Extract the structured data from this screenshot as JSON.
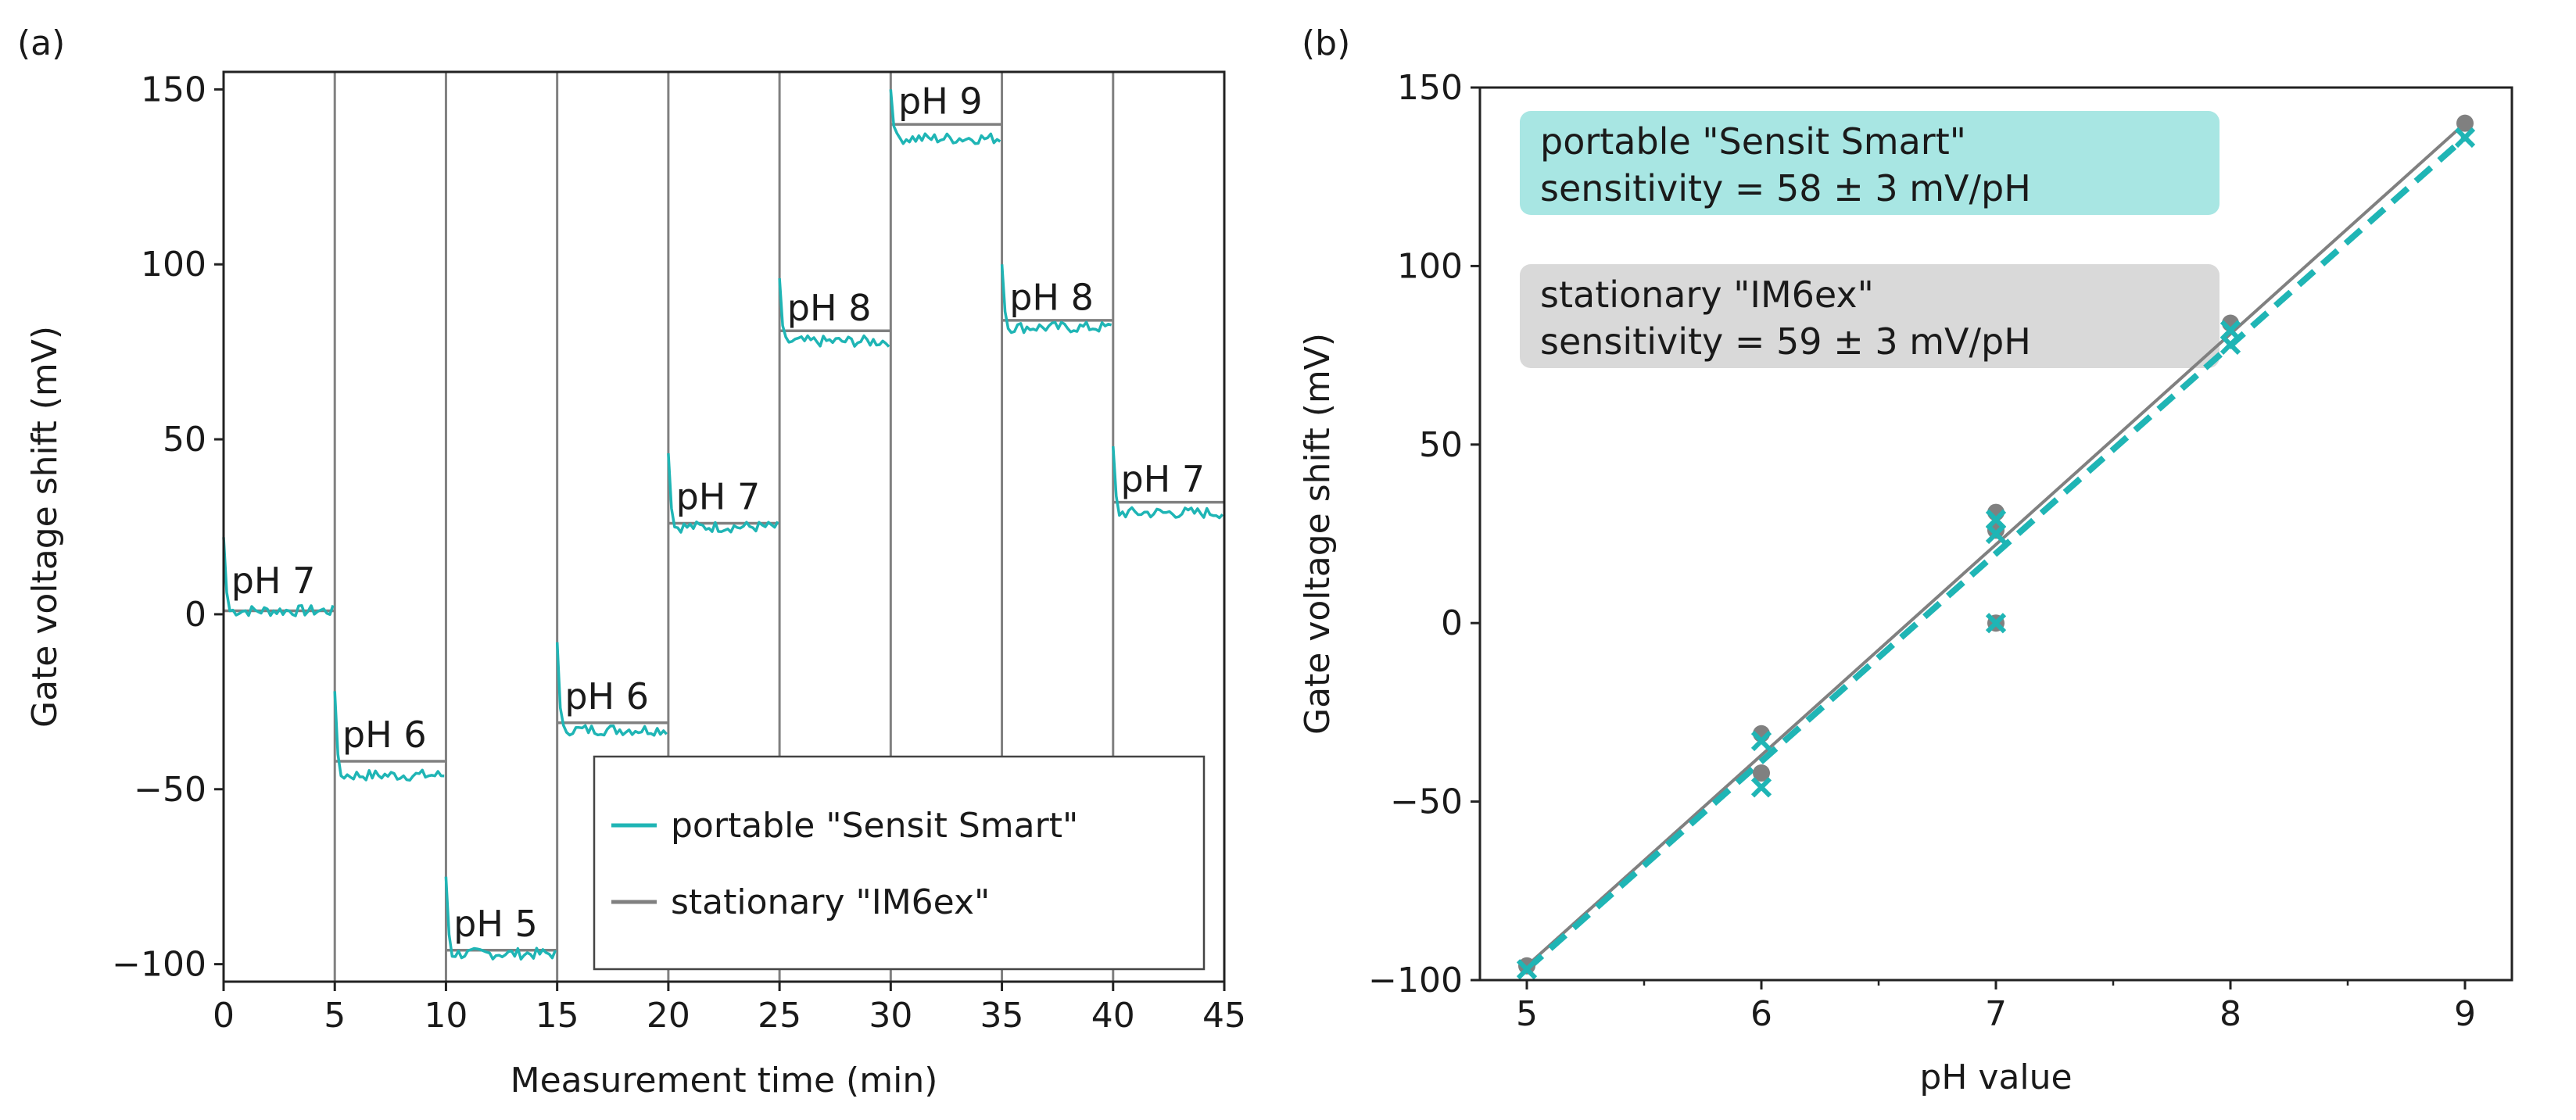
{
  "colors": {
    "portable": "#1fb5b5",
    "stationary": "#808080",
    "box_portable": "#a8e6e3",
    "box_stationary": "#d9d9d9"
  },
  "panel_a": {
    "tag": "(a)"
  },
  "panel_b": {
    "tag": "(b)"
  },
  "chart_data": [
    {
      "type": "line",
      "panel": "(a)",
      "xlabel": "Measurement time (min)",
      "ylabel": "Gate voltage shift (mV)",
      "xlim": [
        0,
        45
      ],
      "ylim": [
        -105,
        155
      ],
      "xticks": [
        0,
        5,
        10,
        15,
        20,
        25,
        30,
        35,
        40,
        45
      ],
      "yticks": [
        -100,
        -50,
        0,
        50,
        100,
        150
      ],
      "ytick_labels": [
        "−100",
        "−50",
        "0",
        "50",
        "100",
        "150"
      ],
      "grid": false,
      "legend_position": "bottom-right",
      "series": [
        {
          "name": "portable \"Sensit Smart\"",
          "segments": [
            {
              "t0": 0,
              "t1": 5,
              "level": 1,
              "spike": 22
            },
            {
              "t0": 5,
              "t1": 10,
              "level": -46,
              "spike": -22
            },
            {
              "t0": 10,
              "t1": 15,
              "level": -97,
              "spike": -75
            },
            {
              "t0": 15,
              "t1": 20,
              "level": -33,
              "spike": -8
            },
            {
              "t0": 20,
              "t1": 25,
              "level": 25,
              "spike": 46
            },
            {
              "t0": 25,
              "t1": 30,
              "level": 78,
              "spike": 96
            },
            {
              "t0": 30,
              "t1": 35,
              "level": 136,
              "spike": 150
            },
            {
              "t0": 35,
              "t1": 40,
              "level": 82,
              "spike": 100
            },
            {
              "t0": 40,
              "t1": 45,
              "level": 29,
              "spike": 48
            }
          ]
        },
        {
          "name": "stationary \"IM6ex\"",
          "segments": [
            {
              "t0": 0,
              "t1": 5,
              "level": 1
            },
            {
              "t0": 5,
              "t1": 10,
              "level": -42
            },
            {
              "t0": 10,
              "t1": 15,
              "level": -96
            },
            {
              "t0": 15,
              "t1": 20,
              "level": -31
            },
            {
              "t0": 20,
              "t1": 25,
              "level": 26
            },
            {
              "t0": 25,
              "t1": 30,
              "level": 81
            },
            {
              "t0": 30,
              "t1": 35,
              "level": 140
            },
            {
              "t0": 35,
              "t1": 40,
              "level": 84
            },
            {
              "t0": 40,
              "t1": 45,
              "level": 32
            }
          ]
        }
      ],
      "annotations": [
        {
          "text": "pH 7",
          "t": 0.2,
          "y": 6
        },
        {
          "text": "pH 6",
          "t": 5.2,
          "y": -38
        },
        {
          "text": "pH 5",
          "t": 10.2,
          "y": -92
        },
        {
          "text": "pH 6",
          "t": 15.2,
          "y": -27
        },
        {
          "text": "pH 7",
          "t": 20.2,
          "y": 30
        },
        {
          "text": "pH 8",
          "t": 25.2,
          "y": 84
        },
        {
          "text": "pH 9",
          "t": 30.2,
          "y": 143
        },
        {
          "text": "pH 8",
          "t": 35.2,
          "y": 87
        },
        {
          "text": "pH 7",
          "t": 40.2,
          "y": 35
        }
      ]
    },
    {
      "type": "scatter",
      "panel": "(b)",
      "xlabel": "pH value",
      "ylabel": "Gate voltage shift (mV)",
      "xlim": [
        4.8,
        9.2
      ],
      "ylim": [
        -100,
        150
      ],
      "xticks": [
        5,
        6,
        7,
        8,
        9
      ],
      "yticks": [
        -100,
        -50,
        0,
        50,
        100,
        150
      ],
      "ytick_labels": [
        "−100",
        "−50",
        "0",
        "50",
        "100",
        "150"
      ],
      "grid": false,
      "series": [
        {
          "name": "stationary \"IM6ex\"",
          "marker": "circle",
          "points": [
            [
              5,
              -96
            ],
            [
              6,
              -42
            ],
            [
              6,
              -31
            ],
            [
              7,
              0
            ],
            [
              7,
              26
            ],
            [
              7,
              31
            ],
            [
              8,
              84
            ],
            [
              9,
              140
            ]
          ],
          "fit": {
            "x": [
              5,
              9
            ],
            "y": [
              -96,
              140
            ],
            "style": "solid"
          }
        },
        {
          "name": "portable \"Sensit Smart\"",
          "marker": "x",
          "points": [
            [
              5,
              -97
            ],
            [
              6,
              -46
            ],
            [
              6,
              -33
            ],
            [
              7,
              0
            ],
            [
              7,
              25
            ],
            [
              7,
              29
            ],
            [
              8,
              78
            ],
            [
              8,
              82
            ],
            [
              9,
              136
            ]
          ],
          "fit": {
            "x": [
              5,
              9
            ],
            "y": [
              -97,
              136
            ],
            "style": "dashed"
          }
        }
      ],
      "info_boxes": [
        {
          "line1": "portable \"Sensit Smart\"",
          "line2": "sensitivity = 58 ± 3 mV/pH"
        },
        {
          "line1": "stationary \"IM6ex\"",
          "line2": "sensitivity = 59 ± 3 mV/pH"
        }
      ]
    }
  ]
}
